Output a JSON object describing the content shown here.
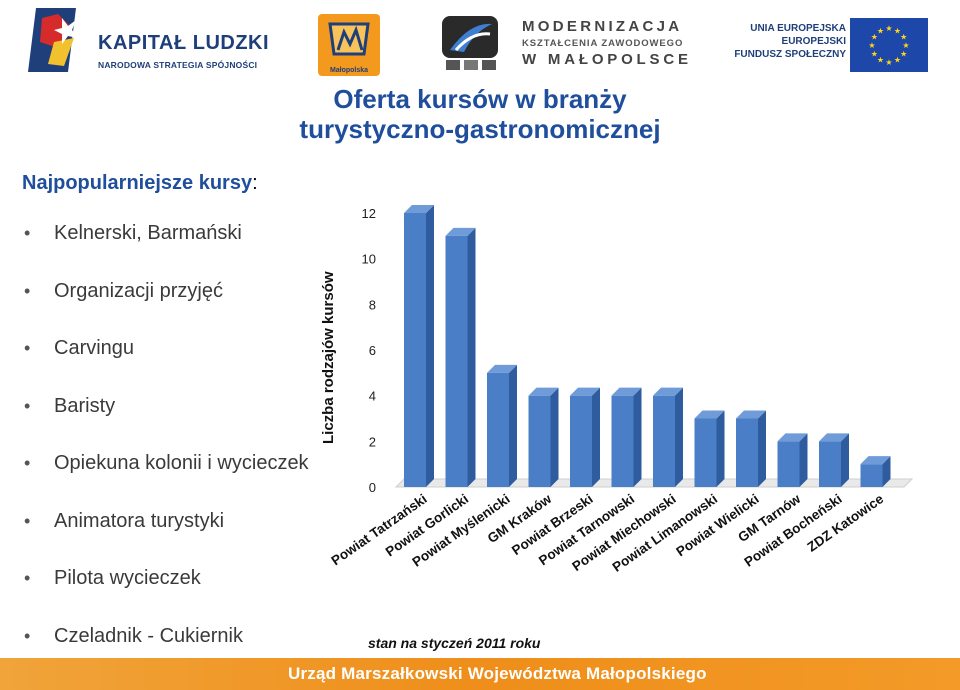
{
  "header": {
    "kapital_ludzki": {
      "title": "KAPITAŁ LUDZKI",
      "subtitle": "NARODOWA STRATEGIA SPÓJNOŚCI"
    },
    "malopolska": {
      "label": "Małopolska"
    },
    "modernizacja": {
      "line1": "MODERNIZACJA",
      "line2": "KSZTAŁCENIA ZAWODOWEGO",
      "line3": "W MAŁOPOLSCE"
    },
    "unia": {
      "line1": "UNIA EUROPEJSKA",
      "line2": "EUROPEJSKI",
      "line3": "FUNDUSZ SPOŁECZNY"
    }
  },
  "title": "Oferta kursów w branży turystyczno-gastronomicznej",
  "list": {
    "heading": "Najpopularniejsze kursy",
    "heading_suffix": ":",
    "items": [
      "Kelnerski, Barmański",
      "Organizacji przyjęć",
      "Carvingu",
      "Baristy",
      "Opiekuna kolonii i wycieczek",
      "Animatora turystyki",
      "Pilota wycieczek",
      "Czeladnik - Cukiernik"
    ]
  },
  "chart_data": {
    "type": "bar",
    "ylabel": "Liczba rodzajów kursów",
    "ylim": [
      0,
      12
    ],
    "yticks": [
      0,
      2,
      4,
      6,
      8,
      10,
      12
    ],
    "grid": false,
    "categories": [
      "Powiat Tatrzański",
      "Powiat Gorlicki",
      "Powiat Myślenicki",
      "GM Kraków",
      "Powiat Brzeski",
      "Powiat Tarnowski",
      "Powiat Miechowski",
      "Powiat Limanowski",
      "Powiat Wielicki",
      "GM Tarnów",
      "Powiat Bocheński",
      "ZDZ Katowice"
    ],
    "values": [
      12,
      11,
      5,
      4,
      4,
      4,
      4,
      3,
      3,
      2,
      2,
      1
    ],
    "colors": {
      "bar_front": "#4a7fc7",
      "bar_side": "#2e5c9e",
      "bar_top": "#6f9bd8"
    }
  },
  "note": "stan na styczeń 2011 roku",
  "footer": "Urząd Marszałkowski Województwa Małopolskiego",
  "colors": {
    "title": "#1f4e9c",
    "footer": "#ef8e1a"
  }
}
